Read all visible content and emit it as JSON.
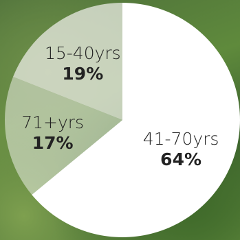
{
  "chart_data": {
    "type": "pie",
    "categories": [
      "41-70yrs",
      "71+yrs",
      "15-40yrs"
    ],
    "values": [
      64,
      17,
      19
    ],
    "value_labels": [
      "64%",
      "17%",
      "19%"
    ],
    "colors": [
      "#ffffff",
      "rgba(235,238,230,0.55)",
      "rgba(240,240,236,0.72)"
    ]
  }
}
